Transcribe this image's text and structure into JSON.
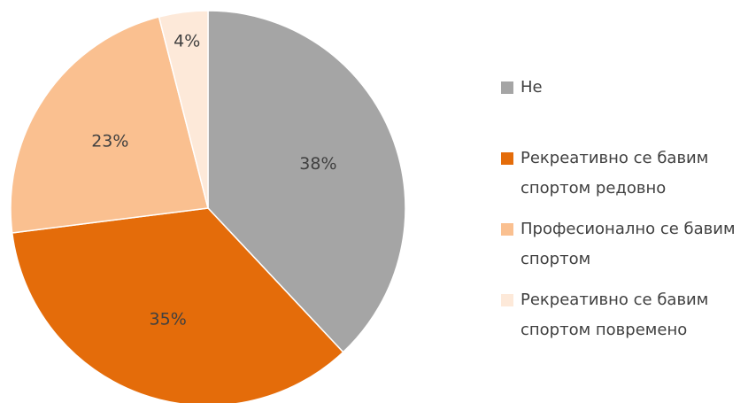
{
  "chart_data": {
    "type": "pie",
    "categories": [
      "Не",
      "Рекреативно се бавим спортом редовно",
      "Професионално се бавим спортом",
      "Рекреативно се бавим спортом повремено"
    ],
    "values": [
      38,
      35,
      23,
      4
    ],
    "value_labels": [
      "38%",
      "35%",
      "23%",
      "4%"
    ],
    "colors": [
      "#a5a5a5",
      "#e46c0a",
      "#fac090",
      "#fde9d9"
    ],
    "legend": "right"
  }
}
